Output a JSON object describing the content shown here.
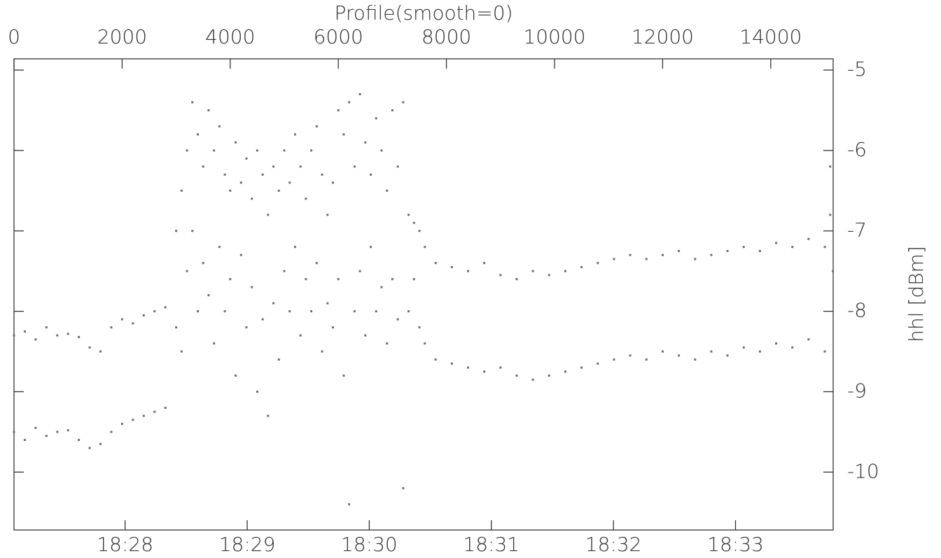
{
  "chart_data": {
    "type": "scatter",
    "xlabel": "Profile(smooth=0)",
    "ylabel": "hhl [dBm]",
    "color": "#6e6e6e",
    "grid": false,
    "xlim": [
      0,
      15155
    ],
    "xticks": [
      0,
      2000,
      4000,
      6000,
      8000,
      10000,
      12000,
      14000
    ],
    "x2lim": [
      1107.09,
      1113.8
    ],
    "x2ticks": [
      {
        "value": 1108,
        "label": "18:28"
      },
      {
        "value": 1109,
        "label": "18:29"
      },
      {
        "value": 1110,
        "label": "18:30"
      },
      {
        "value": 1111,
        "label": "18:31"
      },
      {
        "value": 1112,
        "label": "18:32"
      },
      {
        "value": 1113,
        "label": "18:33"
      }
    ],
    "ylim": [
      -10.72,
      -4.86
    ],
    "yticks": [
      -5,
      -6,
      -7,
      -8,
      -9,
      -10
    ],
    "x": [
      0,
      200,
      400,
      600,
      800,
      1000,
      1200,
      1400,
      1600,
      1800,
      2000,
      2200,
      2400,
      2600,
      2800,
      0,
      200,
      400,
      600,
      800,
      1000,
      1200,
      1400,
      1600,
      1800,
      2000,
      2200,
      2400,
      2600,
      2800,
      3000,
      3000,
      3100,
      3100,
      3200,
      3200,
      3300,
      3300,
      3400,
      3400,
      3500,
      3500,
      3600,
      3600,
      3700,
      3700,
      3800,
      3800,
      3900,
      3900,
      4000,
      4000,
      4100,
      4100,
      4200,
      4200,
      4300,
      4300,
      4400,
      4400,
      4500,
      4500,
      4600,
      4600,
      4700,
      4700,
      4800,
      4800,
      4900,
      4900,
      5000,
      5000,
      5100,
      5100,
      5200,
      5200,
      5300,
      5300,
      5400,
      5400,
      5500,
      5500,
      5600,
      5600,
      5700,
      5700,
      5800,
      5800,
      5900,
      5900,
      6000,
      6000,
      6100,
      6100,
      6200,
      6200,
      6300,
      6300,
      6400,
      6400,
      6500,
      6500,
      6600,
      6600,
      6700,
      6700,
      6800,
      6800,
      6900,
      6900,
      7000,
      7000,
      7100,
      7100,
      7200,
      7200,
      7300,
      7300,
      7400,
      7400,
      7500,
      7500,
      7600,
      7600,
      7800,
      8100,
      8400,
      8700,
      9000,
      9300,
      9600,
      9900,
      10200,
      10500,
      10800,
      11100,
      11400,
      11700,
      12000,
      12300,
      12600,
      12900,
      13200,
      13500,
      13800,
      14100,
      14400,
      14700,
      15000,
      7800,
      8100,
      8400,
      8700,
      9000,
      9300,
      9600,
      9900,
      10200,
      10500,
      10800,
      11100,
      11400,
      11700,
      12000,
      12300,
      12600,
      12900,
      13200,
      13500,
      13800,
      14100,
      14400,
      14700,
      15000,
      15100,
      15100,
      15150
    ],
    "values": [
      -8.3,
      -8.25,
      -8.35,
      -8.2,
      -8.3,
      -8.28,
      -8.32,
      -8.45,
      -8.5,
      -8.2,
      -8.1,
      -8.15,
      -8.05,
      -8.0,
      -7.95,
      -9.5,
      -9.6,
      -9.45,
      -9.55,
      -9.5,
      -9.48,
      -9.6,
      -9.7,
      -9.65,
      -9.5,
      -9.4,
      -9.35,
      -9.3,
      -9.25,
      -9.2,
      -7.0,
      -8.2,
      -6.5,
      -8.5,
      -6.0,
      -7.5,
      -5.4,
      -7.0,
      -5.8,
      -8.0,
      -6.2,
      -7.4,
      -5.5,
      -7.8,
      -6.0,
      -8.4,
      -5.7,
      -7.2,
      -6.3,
      -8.0,
      -6.5,
      -7.6,
      -5.9,
      -8.8,
      -6.4,
      -7.3,
      -6.1,
      -8.2,
      -6.6,
      -7.7,
      -6.0,
      -9.0,
      -6.3,
      -8.1,
      -6.8,
      -9.3,
      -6.2,
      -7.9,
      -6.5,
      -8.6,
      -6.0,
      -7.5,
      -6.4,
      -8.0,
      -5.8,
      -7.2,
      -6.2,
      -8.3,
      -6.6,
      -7.6,
      -6.0,
      -8.0,
      -5.7,
      -7.4,
      -6.3,
      -8.5,
      -6.8,
      -7.9,
      -6.4,
      -8.2,
      -5.5,
      -7.6,
      -5.8,
      -8.8,
      -5.4,
      -10.4,
      -6.2,
      -8.0,
      -5.3,
      -7.5,
      -5.9,
      -8.3,
      -6.3,
      -7.2,
      -5.6,
      -8.0,
      -6.0,
      -7.7,
      -6.5,
      -8.4,
      -5.5,
      -7.6,
      -6.2,
      -8.1,
      -5.4,
      -10.2,
      -6.8,
      -8.0,
      -6.9,
      -7.6,
      -7.0,
      -8.2,
      -7.2,
      -8.4,
      -7.4,
      -7.45,
      -7.5,
      -7.4,
      -7.55,
      -7.6,
      -7.5,
      -7.55,
      -7.5,
      -7.45,
      -7.4,
      -7.35,
      -7.3,
      -7.35,
      -7.3,
      -7.25,
      -7.35,
      -7.3,
      -7.25,
      -7.2,
      -7.25,
      -7.15,
      -7.2,
      -7.1,
      -7.2,
      -8.6,
      -8.65,
      -8.7,
      -8.75,
      -8.7,
      -8.8,
      -8.85,
      -8.8,
      -8.75,
      -8.7,
      -8.65,
      -8.6,
      -8.55,
      -8.6,
      -8.5,
      -8.55,
      -8.6,
      -8.5,
      -8.55,
      -8.45,
      -8.5,
      -8.4,
      -8.45,
      -8.35,
      -8.5,
      -6.2,
      -6.8,
      -7.5
    ]
  }
}
